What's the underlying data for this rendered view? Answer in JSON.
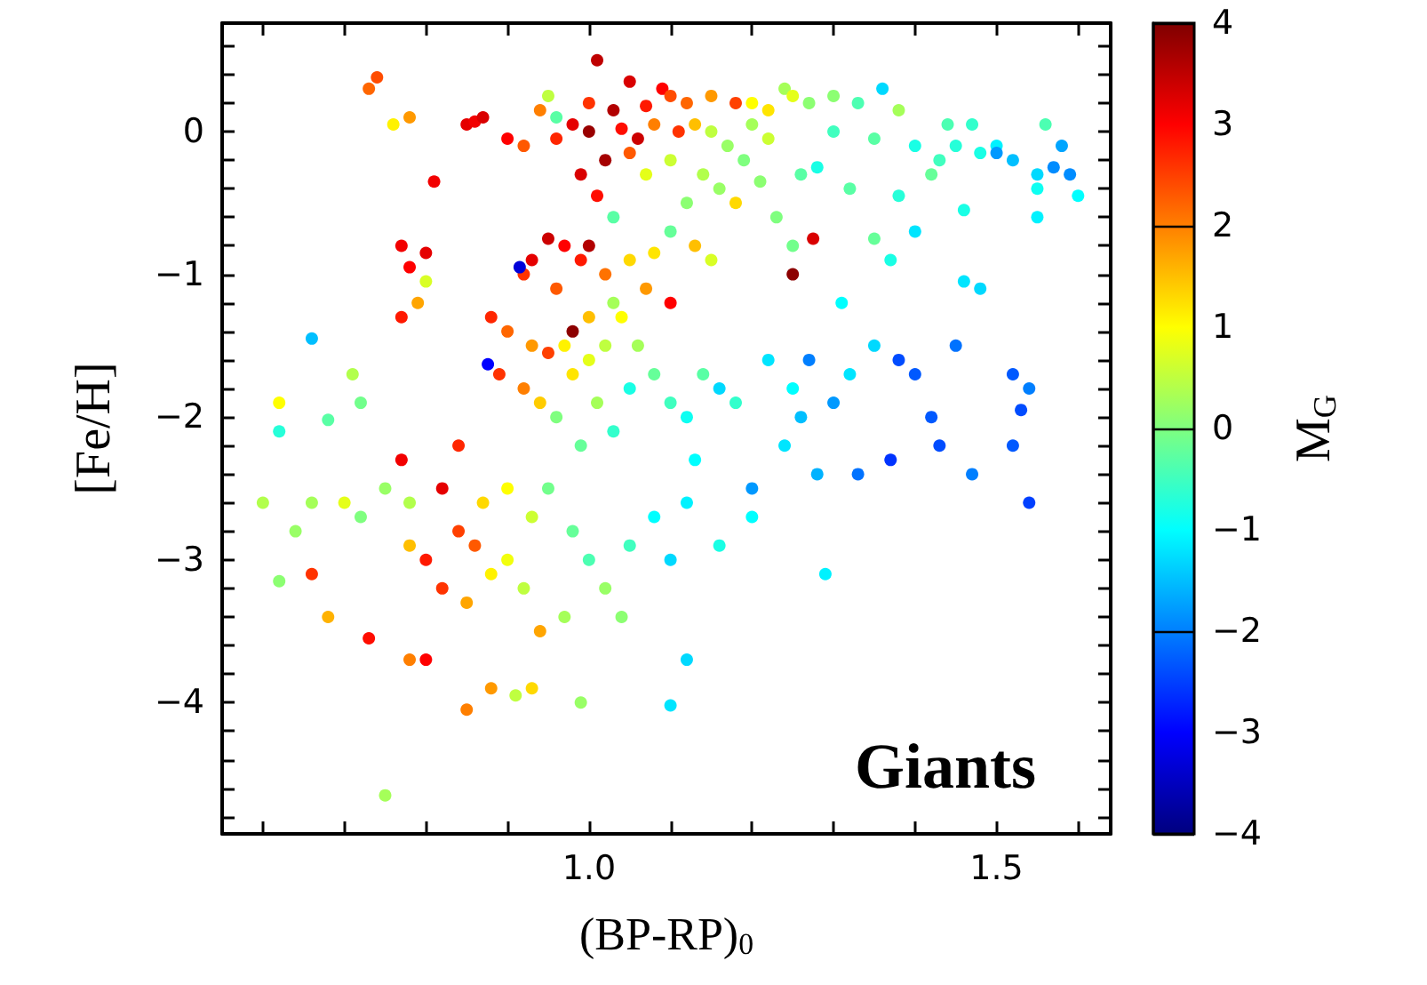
{
  "chart_data": {
    "type": "scatter",
    "xlabel": "(BP-RP)$_{0}$",
    "ylabel": "[Fe/H]",
    "clabel": "M$_{G}$",
    "annotations": [
      "Giants"
    ],
    "marker": "circle",
    "xlim": [
      0.55,
      1.64
    ],
    "ylim": [
      -4.92,
      0.76
    ],
    "clim": [
      -4,
      4
    ],
    "xticks": [
      {
        "value": 0.6,
        "label": null
      },
      {
        "value": 0.7,
        "label": null
      },
      {
        "value": 0.8,
        "label": null
      },
      {
        "value": 0.9,
        "label": null
      },
      {
        "value": 1.0,
        "label": "1.0"
      },
      {
        "value": 1.1,
        "label": null
      },
      {
        "value": 1.2,
        "label": null
      },
      {
        "value": 1.3,
        "label": null
      },
      {
        "value": 1.4,
        "label": null
      },
      {
        "value": 1.5,
        "label": "1.5"
      },
      {
        "value": 1.6,
        "label": null
      }
    ],
    "yticks": [
      {
        "value": 0.6,
        "label": null
      },
      {
        "value": 0.4,
        "label": null
      },
      {
        "value": 0.2,
        "label": null
      },
      0,
      {
        "value": -0.2,
        "label": null
      },
      {
        "value": -0.4,
        "label": null
      },
      {
        "value": -0.6,
        "label": null
      },
      {
        "value": -0.8,
        "label": null
      },
      {
        "value": -1,
        "label": "−1"
      },
      {
        "value": -1.2,
        "label": null
      },
      {
        "value": -1.4,
        "label": null
      },
      {
        "value": -1.6,
        "label": null
      },
      {
        "value": -1.8,
        "label": null
      },
      {
        "value": -2,
        "label": "−2"
      },
      {
        "value": -2.2,
        "label": null
      },
      {
        "value": -2.4,
        "label": null
      },
      {
        "value": -2.6,
        "label": null
      },
      {
        "value": -2.8,
        "label": null
      },
      {
        "value": -3,
        "label": "−3"
      },
      {
        "value": -3.2,
        "label": null
      },
      {
        "value": -3.4,
        "label": null
      },
      {
        "value": -3.6,
        "label": null
      },
      {
        "value": -3.8,
        "label": null
      },
      {
        "value": -4,
        "label": "−4"
      },
      {
        "value": -4.2,
        "label": null
      },
      {
        "value": -4.4,
        "label": null
      },
      {
        "value": -4.6,
        "label": null
      },
      {
        "value": -4.8,
        "label": null
      }
    ],
    "cticks": [
      {
        "value": -4,
        "label": "−4"
      },
      {
        "value": -3,
        "label": "−3"
      },
      {
        "value": -2,
        "label": "−2"
      },
      {
        "value": -1,
        "label": "−1"
      },
      0,
      1,
      2,
      3,
      4
    ],
    "x": [
      1.01,
      1.05,
      1.09,
      1.0,
      1.03,
      1.07,
      1.1,
      1.12,
      1.15,
      1.18,
      0.98,
      1.0,
      1.04,
      1.06,
      1.08,
      1.11,
      1.13,
      0.96,
      1.02,
      1.05,
      0.99,
      1.01,
      1.07,
      1.03,
      0.85,
      0.86,
      0.87,
      0.9,
      0.74,
      0.73,
      0.78,
      0.76,
      0.81,
      0.94,
      0.92,
      0.95,
      0.96,
      1.15,
      1.17,
      1.2,
      1.22,
      1.19,
      1.14,
      1.16,
      1.12,
      1.1,
      1.24,
      1.25,
      1.27,
      1.22,
      1.2,
      1.18,
      1.21,
      1.26,
      1.23,
      1.13,
      1.15,
      1.1,
      1.08,
      1.3,
      1.33,
      1.36,
      1.38,
      1.3,
      1.35,
      1.4,
      1.43,
      1.45,
      1.48,
      1.5,
      1.52,
      1.55,
      1.57,
      1.58,
      1.56,
      1.59,
      1.6,
      1.55,
      1.5,
      1.42,
      1.38,
      1.32,
      1.28,
      1.46,
      1.55,
      1.44,
      1.47,
      1.25,
      1.35,
      1.4,
      1.275,
      1.25,
      1.1,
      0.95,
      0.97,
      0.99,
      1.0,
      0.93,
      0.92,
      0.96,
      1.02,
      1.05,
      1.07,
      1.03,
      1.0,
      0.98,
      0.915,
      0.876,
      0.88,
      0.9,
      0.93,
      0.95,
      0.89,
      0.92,
      0.97,
      1.0,
      0.98,
      1.02,
      1.04,
      1.06,
      0.94,
      0.96,
      0.99,
      1.01,
      1.03,
      1.05,
      1.08,
      1.1,
      1.12,
      1.14,
      1.16,
      1.13,
      1.18,
      1.22,
      1.25,
      1.27,
      1.3,
      1.32,
      1.35,
      1.38,
      1.4,
      1.42,
      1.45,
      1.48,
      1.52,
      1.54,
      1.53,
      1.52,
      1.54,
      1.47,
      1.43,
      1.37,
      1.33,
      1.28,
      1.24,
      1.2,
      1.26,
      1.31,
      1.37,
      1.46,
      0.62,
      0.62,
      0.66,
      0.68,
      0.71,
      0.72,
      0.6,
      0.64,
      0.66,
      0.62,
      0.66,
      0.68,
      0.7,
      0.72,
      0.75,
      0.77,
      0.78,
      0.78,
      0.8,
      0.82,
      0.84,
      0.85,
      0.86,
      0.88,
      0.9,
      0.92,
      0.87,
      0.9,
      0.93,
      0.95,
      0.98,
      1.0,
      1.02,
      1.05,
      1.08,
      1.1,
      1.12,
      1.04,
      0.97,
      0.94,
      0.93,
      0.91,
      0.88,
      0.85,
      0.78,
      0.73,
      0.8,
      0.99,
      1.1,
      1.12,
      1.29,
      0.75,
      1.16,
      1.2,
      0.82,
      0.84,
      0.77,
      0.78,
      0.8,
      0.77,
      0.8,
      0.79
    ],
    "values": [
      0.5,
      0.35,
      0.3,
      0.2,
      0.15,
      0.18,
      0.25,
      0.2,
      0.25,
      0.2,
      0.05,
      0,
      0.02,
      -0.05,
      0.05,
      0.0,
      0.05,
      -0.05,
      -0.2,
      -0.15,
      -0.3,
      -0.45,
      -0.3,
      -0.6,
      0.05,
      0.07,
      0.1,
      -0.05,
      0.38,
      0.3,
      0.1,
      0.05,
      -0.35,
      0.15,
      -0.1,
      0.25,
      0.1,
      0.0,
      -0.1,
      0.05,
      -0.05,
      -0.2,
      -0.3,
      -0.4,
      -0.5,
      -0.2,
      0.3,
      0.25,
      0.2,
      0.15,
      0.2,
      -0.5,
      -0.35,
      -0.3,
      -0.6,
      -0.8,
      -0.9,
      -0.7,
      -0.85,
      0.25,
      0.2,
      0.3,
      0.15,
      0.0,
      -0.05,
      -0.1,
      -0.2,
      -0.1,
      -0.15,
      -0.1,
      -0.2,
      -0.3,
      -0.25,
      -0.1,
      0.05,
      -0.3,
      -0.45,
      -0.4,
      -0.15,
      -0.3,
      -0.45,
      -0.4,
      -0.25,
      -0.55,
      -0.6,
      0.05,
      0.05,
      -0.8,
      -0.75,
      -0.7,
      -0.75,
      -1.0,
      -1.2,
      -0.75,
      -0.8,
      -0.9,
      -0.8,
      -0.9,
      -1.0,
      -1.1,
      -1.0,
      -0.9,
      -1.1,
      -1.2,
      -1.3,
      -1.4,
      -0.95,
      -1.63,
      -1.3,
      -1.4,
      -1.5,
      -1.55,
      -1.7,
      -1.8,
      -1.5,
      -1.6,
      -1.7,
      -1.5,
      -1.3,
      -1.5,
      -1.9,
      -2.0,
      -2.2,
      -1.9,
      -2.1,
      -1.8,
      -1.7,
      -1.9,
      -2.0,
      -1.7,
      -1.8,
      -2.3,
      -1.9,
      -1.6,
      -1.8,
      -1.6,
      -1.9,
      -1.7,
      -1.5,
      -1.6,
      -1.7,
      -2.0,
      -1.5,
      -1.1,
      -1.7,
      -1.8,
      -1.95,
      -2.2,
      -2.6,
      -2.4,
      -2.2,
      -2.3,
      -2.4,
      -2.4,
      -2.2,
      -2.5,
      -2.0,
      -1.2,
      -0.9,
      -1.05,
      -1.9,
      -2.1,
      -1.45,
      -2.02,
      -1.7,
      -1.9,
      -2.6,
      -2.8,
      -2.6,
      -3.15,
      -3.1,
      -3.4,
      -2.6,
      -2.7,
      -2.5,
      -2.3,
      -2.6,
      -2.9,
      -3.0,
      -3.2,
      -2.8,
      -3.3,
      -2.9,
      -3.1,
      -3.0,
      -3.2,
      -2.6,
      -2.5,
      -2.7,
      -2.5,
      -2.8,
      -3.0,
      -3.2,
      -2.9,
      -2.7,
      -3.0,
      -2.6,
      -3.4,
      -3.4,
      -3.5,
      -3.9,
      -3.95,
      -3.9,
      -4.05,
      -3.7,
      -3.55,
      -3.7,
      -4.0,
      -4.02,
      -3.7,
      -3.1,
      -4.65,
      -2.9,
      -2.7,
      -2.5,
      -2.2,
      -0.8,
      -0.95,
      -0.85,
      -1.3,
      -1.05,
      -1.2
    ],
    "cvalues": [
      3.5,
      3.3,
      3,
      2.6,
      3.6,
      2.8,
      2.4,
      2.2,
      1.8,
      2.5,
      3.2,
      3.8,
      2.9,
      3.4,
      2.0,
      2.6,
      1.5,
      2.7,
      3.7,
      2.3,
      3.3,
      2.9,
      0.8,
      -0.3,
      3.2,
      3.1,
      3.3,
      3,
      2.4,
      2.2,
      1.8,
      1.1,
      3.1,
      2.0,
      2.3,
      0.5,
      -0.3,
      0.5,
      0.2,
      0.3,
      0.6,
      0.0,
      0.4,
      0.2,
      0.1,
      0.6,
      0.3,
      0.8,
      0.1,
      1.2,
      1.0,
      1.3,
      0.1,
      -0.3,
      0.0,
      1.5,
      0.7,
      -0.2,
      1.2,
      0.1,
      -0.4,
      -1.3,
      0.3,
      -0.5,
      -0.3,
      -0.8,
      -0.5,
      -0.7,
      -0.8,
      -1.1,
      -1.5,
      -1.3,
      -1.9,
      -1.7,
      -0.4,
      -1.9,
      -1.0,
      -0.9,
      -1.8,
      -0.2,
      -0.7,
      -0.3,
      -0.8,
      -0.8,
      -1.1,
      -0.4,
      -0.6,
      -0.1,
      -0.2,
      -1.2,
      3.3,
      3.9,
      3,
      3.4,
      3,
      2.8,
      3.6,
      3.2,
      2.6,
      2.3,
      2.1,
      1.3,
      1.8,
      0.3,
      1.5,
      3.9,
      -3.3,
      -3,
      2.7,
      2.2,
      1.8,
      2.5,
      2.6,
      2.0,
      1.1,
      0.8,
      1.2,
      0.5,
      1.0,
      0.3,
      1.4,
      0.0,
      -0.2,
      0.3,
      -0.6,
      -0.8,
      -0.2,
      -0.5,
      -0.9,
      -0.3,
      -1.3,
      -1.0,
      -0.6,
      -1.2,
      -1.0,
      -2.0,
      -1.8,
      -1.2,
      -1.3,
      -2.4,
      -2.3,
      -2.3,
      -2.1,
      -1.3,
      -2.3,
      -2.0,
      -2.4,
      -2.3,
      -2.5,
      -2.0,
      -2.4,
      -2.6,
      -2.1,
      -1.6,
      -1.2,
      -1.8,
      -1.5,
      -1.0,
      -0.8,
      -1.2,
      1.0,
      -0.7,
      -1.5,
      -0.3,
      0.4,
      -0.1,
      0.4,
      0.2,
      0.3,
      0.1,
      2.6,
      1.6,
      0.8,
      0.0,
      0.2,
      3.1,
      0.4,
      1.5,
      2.8,
      2.6,
      2.5,
      1.7,
      2.3,
      1.1,
      0.9,
      0.5,
      1.3,
      1.0,
      0.6,
      -0.1,
      -0.2,
      -0.4,
      0.2,
      -0.5,
      -1.0,
      -1.3,
      -1.1,
      0.1,
      0.3,
      1.7,
      1.3,
      0.5,
      1.8,
      2.0,
      2.0,
      2.9,
      3.0,
      0.2,
      -1.2,
      -1.3,
      -1.1,
      0.3,
      -0.8,
      -1.0,
      3.2,
      2.7,
      3.1,
      3.0,
      3.2,
      2.8,
      0.7,
      1.7
    ]
  }
}
